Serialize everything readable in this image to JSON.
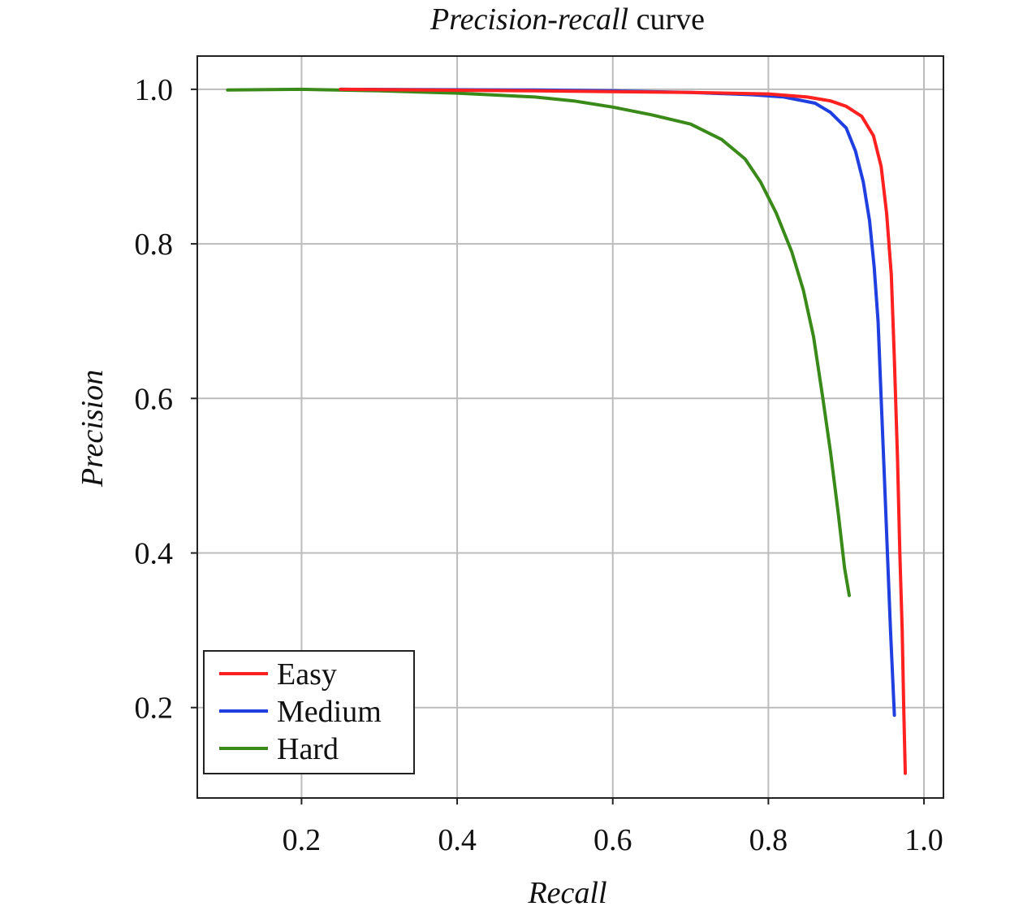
{
  "chart_data": {
    "type": "line",
    "title_italic": "Precision-recall",
    "title_plain": " curve",
    "xlabel": "Recall",
    "ylabel": "Precision",
    "xlim": [
      0.066,
      1.025
    ],
    "ylim": [
      0.083,
      1.043
    ],
    "xticks": [
      0.2,
      0.4,
      0.6,
      0.8,
      1.0
    ],
    "yticks": [
      0.2,
      0.4,
      0.6,
      0.8,
      1.0
    ],
    "xtick_labels": [
      "0.2",
      "0.4",
      "0.6",
      "0.8",
      "1.0"
    ],
    "ytick_labels": [
      "0.2",
      "0.4",
      "0.6",
      "0.8",
      "1.0"
    ],
    "grid": true,
    "legend_position": "bottom-left",
    "series": [
      {
        "name": "Easy",
        "color": "#ff2020",
        "points": [
          [
            0.25,
            1.0
          ],
          [
            0.5,
            0.998
          ],
          [
            0.7,
            0.996
          ],
          [
            0.8,
            0.994
          ],
          [
            0.85,
            0.99
          ],
          [
            0.88,
            0.985
          ],
          [
            0.9,
            0.978
          ],
          [
            0.92,
            0.965
          ],
          [
            0.935,
            0.94
          ],
          [
            0.945,
            0.9
          ],
          [
            0.952,
            0.84
          ],
          [
            0.958,
            0.76
          ],
          [
            0.962,
            0.65
          ],
          [
            0.966,
            0.52
          ],
          [
            0.969,
            0.4
          ],
          [
            0.972,
            0.3
          ],
          [
            0.974,
            0.2
          ],
          [
            0.976,
            0.115
          ]
        ]
      },
      {
        "name": "Medium",
        "color": "#1f3fe0",
        "points": [
          [
            0.25,
            1.0
          ],
          [
            0.5,
            0.999
          ],
          [
            0.6,
            0.998
          ],
          [
            0.7,
            0.996
          ],
          [
            0.78,
            0.993
          ],
          [
            0.82,
            0.99
          ],
          [
            0.86,
            0.982
          ],
          [
            0.88,
            0.97
          ],
          [
            0.9,
            0.95
          ],
          [
            0.912,
            0.92
          ],
          [
            0.922,
            0.88
          ],
          [
            0.93,
            0.83
          ],
          [
            0.936,
            0.77
          ],
          [
            0.941,
            0.7
          ],
          [
            0.945,
            0.6
          ],
          [
            0.949,
            0.5
          ],
          [
            0.953,
            0.4
          ],
          [
            0.957,
            0.3
          ],
          [
            0.962,
            0.19
          ]
        ]
      },
      {
        "name": "Hard",
        "color": "#3a8a1a",
        "points": [
          [
            0.105,
            0.999
          ],
          [
            0.2,
            1.0
          ],
          [
            0.3,
            0.998
          ],
          [
            0.4,
            0.995
          ],
          [
            0.5,
            0.99
          ],
          [
            0.55,
            0.985
          ],
          [
            0.6,
            0.977
          ],
          [
            0.65,
            0.967
          ],
          [
            0.7,
            0.955
          ],
          [
            0.74,
            0.935
          ],
          [
            0.77,
            0.91
          ],
          [
            0.79,
            0.88
          ],
          [
            0.81,
            0.84
          ],
          [
            0.83,
            0.79
          ],
          [
            0.845,
            0.74
          ],
          [
            0.858,
            0.68
          ],
          [
            0.87,
            0.6
          ],
          [
            0.88,
            0.53
          ],
          [
            0.89,
            0.45
          ],
          [
            0.898,
            0.38
          ],
          [
            0.904,
            0.345
          ]
        ]
      }
    ]
  }
}
